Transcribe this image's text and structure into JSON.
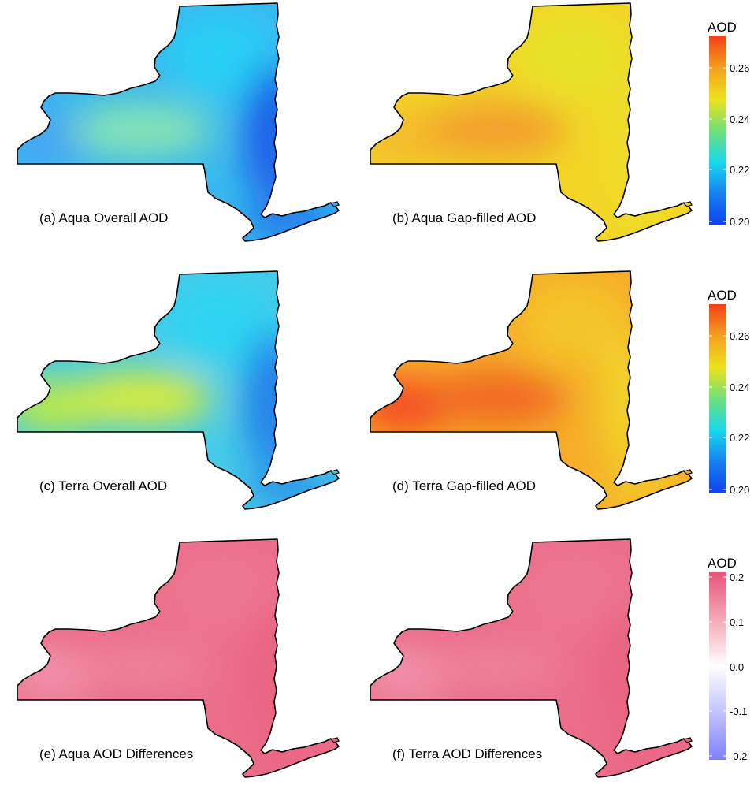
{
  "figure": {
    "panels": [
      {
        "id": "a",
        "label": "(a) Aqua Overall AOD",
        "scale": "aod",
        "palette": {
          "base": "#2fb4ee",
          "north": "#1ecdf5",
          "east": "#0a55e8",
          "west": "#3aa0f2",
          "center": "#7ee2b0"
        }
      },
      {
        "id": "b",
        "label": "(b) Aqua Gap-filled AOD",
        "scale": "aod",
        "palette": {
          "base": "#f2d21a",
          "north": "#e6e21c",
          "east": "#eedc1a",
          "west": "#f4b820",
          "center": "#f29a20"
        }
      },
      {
        "id": "c",
        "label": "(c) Terra Overall AOD",
        "scale": "aod",
        "palette": {
          "base": "#3cc8e6",
          "north": "#20d2f2",
          "east": "#1478ea",
          "west": "#b6e83c",
          "center": "#d6ea30"
        }
      },
      {
        "id": "d",
        "label": "(d) Terra Gap-filled AOD",
        "scale": "aod",
        "palette": {
          "base": "#f6a81e",
          "north": "#f4c21c",
          "east": "#f2d01c",
          "west": "#f54014",
          "center": "#f06018"
        }
      },
      {
        "id": "e",
        "label": "(e) Aqua AOD Differences",
        "scale": "diff",
        "palette": {
          "base": "#ea6584",
          "north": "#ec6f8c",
          "east": "#e85c7c",
          "west": "#f18ca4",
          "center": "#ee7894"
        }
      },
      {
        "id": "f",
        "label": "(f) Terra AOD Differences",
        "scale": "diff",
        "palette": {
          "base": "#ea6584",
          "north": "#ec6f8c",
          "east": "#e85c7c",
          "west": "#f18ca4",
          "center": "#ee7894"
        }
      }
    ],
    "colorbars": [
      {
        "id": "aod-top",
        "title": "AOD",
        "ticks": [
          "0.26",
          "0.24",
          "0.22",
          "0.20"
        ],
        "stops": [
          "#f54014",
          "#f5a01e",
          "#eee21a",
          "#6ee07a",
          "#18d8ee",
          "#1680f0",
          "#1040f0"
        ]
      },
      {
        "id": "aod-mid",
        "title": "AOD",
        "ticks": [
          "0.26",
          "0.24",
          "0.22",
          "0.20"
        ],
        "stops": [
          "#f54014",
          "#f5a01e",
          "#eee21a",
          "#6ee07a",
          "#18d8ee",
          "#1680f0",
          "#1040f0"
        ]
      },
      {
        "id": "diff",
        "title": "AOD",
        "ticks": [
          "0.2",
          "0.1",
          "0.0",
          "-0.1",
          "-0.2"
        ],
        "stops": [
          "#e8547a",
          "#f4a8b8",
          "#ffffff",
          "#c2c2ff",
          "#8080ff"
        ]
      }
    ]
  }
}
